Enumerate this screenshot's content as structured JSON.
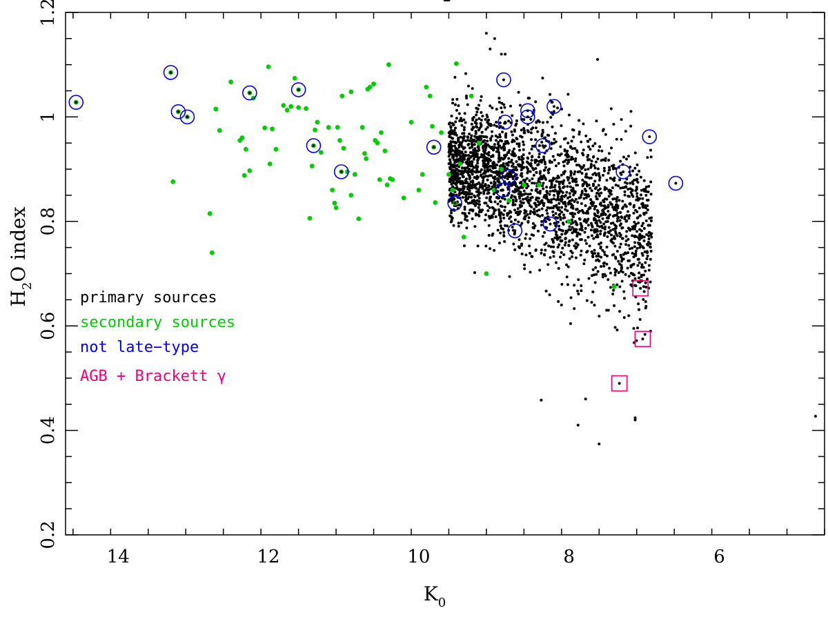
{
  "chart_data": {
    "type": "scatter",
    "xlabel": {
      "main": "K",
      "sub": "0"
    },
    "ylabel": {
      "pre": "H",
      "sub": "2",
      "post": "O index"
    },
    "xlim": [
      14.7,
      4.6
    ],
    "ylim": [
      0.2,
      1.2
    ],
    "x_reversed": true,
    "x_ticks": [
      14,
      12,
      10,
      8,
      6
    ],
    "y_ticks": [
      0.2,
      0.4,
      0.6,
      0.8,
      1.0,
      1.2
    ],
    "y_tick_labels": [
      "0.2",
      "0.4",
      "0.6",
      "0.8",
      "1",
      "1.2"
    ],
    "grid": false,
    "legend_position": "left-middle",
    "legend": [
      {
        "label": "primary sources",
        "color": "#000000"
      },
      {
        "label": "secondary sources",
        "color": "#00cc00"
      },
      {
        "label": "not late−type",
        "color": "#0000ee"
      },
      {
        "label": "AGB + Brackett γ",
        "color": "#ee0077"
      }
    ],
    "series": [
      {
        "name": "secondary sources",
        "marker": "dot",
        "color": "#00cc00",
        "x": [
          14.56,
          13.3,
          13.2,
          13.08,
          12.25,
          11.6,
          11.4,
          11.03,
          9.8,
          9.52,
          13.27,
          12.7,
          12.65,
          12.5,
          12.38,
          12.35,
          12.32,
          12.3,
          12.25,
          12.2,
          12.05,
          12.0,
          11.98,
          11.95,
          11.9,
          11.8,
          11.75,
          11.65,
          11.6,
          11.5,
          11.42,
          11.38,
          11.35,
          11.3,
          11.2,
          11.15,
          11.12,
          11.1,
          11.08,
          11.05,
          11.02,
          11.0,
          10.95,
          10.9,
          10.85,
          10.8,
          10.75,
          10.72,
          10.7,
          10.68,
          10.65,
          10.6,
          10.58,
          10.55,
          10.52,
          10.5,
          10.45,
          10.42,
          10.4,
          10.38,
          10.35,
          10.2,
          10.1,
          10.0,
          9.95,
          9.9,
          9.85,
          9.82,
          9.78,
          9.7,
          9.6,
          9.55,
          9.5,
          9.45,
          9.4,
          9.3,
          9.2,
          9.1,
          9.0,
          8.9,
          8.8,
          8.6,
          8.4,
          8.0,
          7.4,
          12.78,
          12.75,
          11.45,
          11.7,
          10.9
        ],
        "y": [
          1.028,
          1.085,
          1.01,
          1.0,
          1.046,
          1.052,
          0.945,
          0.895,
          0.942,
          0.835,
          0.876,
          1.015,
          0.974,
          1.067,
          0.955,
          0.96,
          0.888,
          0.938,
          0.897,
          1.036,
          0.979,
          1.096,
          0.91,
          0.977,
          0.938,
          1.022,
          1.013,
          1.074,
          1.018,
          1.016,
          0.906,
          0.975,
          0.99,
          0.932,
          0.98,
          0.86,
          0.835,
          0.826,
          0.98,
          0.955,
          1.04,
          0.94,
          0.895,
          1.048,
          0.89,
          0.805,
          0.98,
          0.93,
          0.92,
          1.053,
          1.057,
          1.063,
          0.955,
          0.95,
          0.88,
          0.97,
          0.935,
          0.87,
          1.1,
          0.882,
          0.88,
          0.845,
          0.99,
          0.86,
          0.89,
          1.057,
          1.04,
          0.982,
          0.836,
          0.97,
          0.89,
          0.86,
          1.102,
          0.91,
          0.77,
          1.04,
          0.95,
          0.7,
          0.86,
          0.9,
          0.84,
          0.87,
          0.87,
          0.8,
          0.675,
          0.815,
          0.74,
          0.806,
          1.02,
          0.85
        ]
      },
      {
        "name": "not late−type",
        "marker": "circle",
        "color": "#0000ee",
        "x": [
          14.56,
          13.3,
          13.2,
          13.08,
          12.25,
          11.6,
          11.4,
          11.03,
          9.8,
          9.52,
          8.87,
          8.85,
          8.55,
          8.55,
          8.2,
          8.35,
          8.8,
          8.88,
          8.72,
          8.25,
          7.28,
          6.93,
          6.58
        ],
        "y": [
          1.028,
          1.085,
          1.01,
          1.0,
          1.046,
          1.052,
          0.945,
          0.895,
          0.942,
          0.835,
          1.071,
          0.99,
          1.012,
          1.0,
          1.02,
          0.945,
          0.886,
          0.86,
          0.782,
          0.795,
          0.895,
          0.962,
          0.873
        ]
      },
      {
        "name": "AGB + Brackett γ",
        "marker": "square",
        "color": "#ee0077",
        "x": [
          7.05,
          7.02,
          7.33
        ],
        "y": [
          0.672,
          0.575,
          0.49
        ]
      }
    ],
    "primary_sources": {
      "name": "primary sources",
      "marker": "dot",
      "color": "#000000",
      "x_range": [
        6.9,
        9.65
      ],
      "y_range": [
        0.4,
        1.12
      ],
      "count_approx": 2600,
      "outliers": {
        "x": [
          9.1,
          8.9,
          7.62,
          7.78,
          7.6,
          4.72,
          7.12,
          7.12,
          8.37,
          7.2,
          7.5,
          7.88,
          8.1,
          9.05,
          8.99,
          8.85
        ],
        "y": [
          1.16,
          1.12,
          1.11,
          0.46,
          0.374,
          0.427,
          0.424,
          0.42,
          0.458,
          0.695,
          0.63,
          0.41,
          0.64,
          1.13,
          1.15,
          1.12
        ]
      }
    }
  }
}
